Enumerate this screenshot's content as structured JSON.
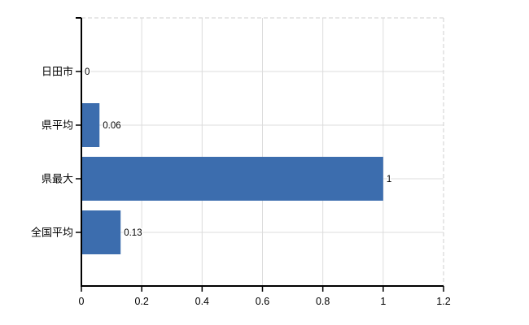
{
  "chart_data": {
    "type": "bar",
    "orientation": "horizontal",
    "title": "",
    "xlabel": "",
    "ylabel": "",
    "categories": [
      "日田市",
      "県平均",
      "県最大",
      "全国平均"
    ],
    "values": [
      0,
      0.06,
      1,
      0.13
    ],
    "value_labels": [
      "0",
      "0.06",
      "1",
      "0.13"
    ],
    "xlim": [
      0,
      1.2
    ],
    "x_ticks": [
      0,
      0.2,
      0.4,
      0.6,
      0.8,
      1,
      1.2
    ],
    "x_tick_labels": [
      "0",
      "0.2",
      "0.4",
      "0.6",
      "0.8",
      "1",
      "1.2"
    ],
    "grid": true,
    "legend": "none",
    "colors": {
      "bar": "#3C6DAE",
      "grid": "#DCDCDC",
      "border_dash": "#CFCFCF",
      "axis": "#000000",
      "text": "#000000",
      "background": "#FFFFFF"
    }
  }
}
